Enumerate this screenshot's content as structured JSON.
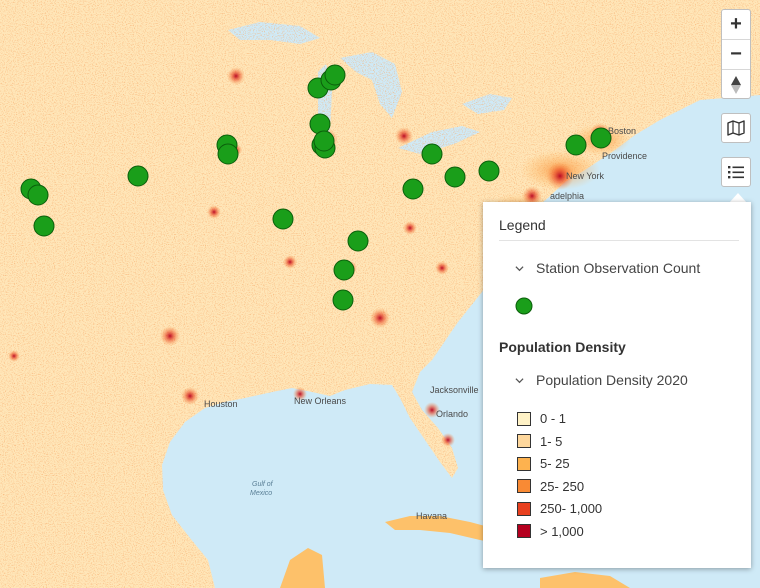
{
  "map": {
    "city_labels": [
      "Boston",
      "Providence",
      "New York",
      "adelphia",
      "Jacksonville",
      "Orlando",
      "Houston",
      "New Orleans",
      "Havana"
    ],
    "water_labels": {
      "gulf_line1": "Gulf of",
      "gulf_line2": "Mexico"
    },
    "station_marker_color": "#1a9e1a"
  },
  "controls": {
    "zoom_in": "+",
    "zoom_out": "−",
    "compass": "compass-icon",
    "basemap": "map-icon",
    "legend": "list-icon"
  },
  "legend": {
    "title": "Legend",
    "layers": [
      {
        "label": "Station Observation Count",
        "symbol_color": "#1a9e1a"
      }
    ],
    "population_section": {
      "title": "Population Density",
      "layer_label": "Population Density 2020",
      "classes": [
        {
          "label": "0 - 1",
          "color": "#fff2c6"
        },
        {
          "label": "1- 5",
          "color": "#fed79c"
        },
        {
          "label": "5- 25",
          "color": "#fdb24f"
        },
        {
          "label": "25- 250",
          "color": "#f98a34"
        },
        {
          "label": "250- 1,000",
          "color": "#e8401f"
        },
        {
          "label": "> 1,000",
          "color": "#b5001f"
        }
      ]
    }
  }
}
